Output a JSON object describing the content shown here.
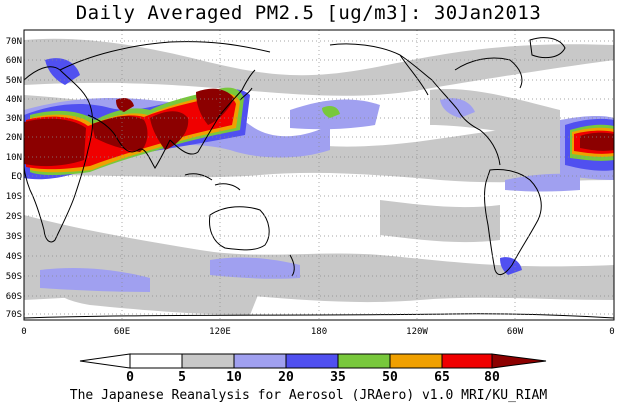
{
  "title": "Daily Averaged PM2.5 [ug/m3]: 30Jan2013",
  "credit": "The Japanese Reanalysis for Aerosol (JRAero) v1.0 MRI/KU_RIAM",
  "lat_labels": [
    "70N",
    "60N",
    "50N",
    "40N",
    "30N",
    "20N",
    "10N",
    "EQ",
    "10S",
    "20S",
    "30S",
    "40S",
    "50S",
    "60S",
    "70S"
  ],
  "lon_labels": [
    "0",
    "60E",
    "120E",
    "180",
    "120W",
    "60W",
    "0"
  ],
  "colorbar": {
    "levels": [
      "0",
      "5",
      "10",
      "20",
      "35",
      "50",
      "65",
      "80"
    ],
    "colors": [
      "#ffffff",
      "#c8c8c8",
      "#a0a0f0",
      "#5050f0",
      "#78c83c",
      "#f0a000",
      "#f00000",
      "#8c0000"
    ]
  },
  "legend_colors": {
    "ocean": "#ffffff",
    "low": "#c8c8c8",
    "light_blue": "#a0a0f0",
    "blue": "#5050f0",
    "green": "#78c83c",
    "orange": "#f0a000",
    "red": "#f00000",
    "dark_red": "#8c0000"
  }
}
